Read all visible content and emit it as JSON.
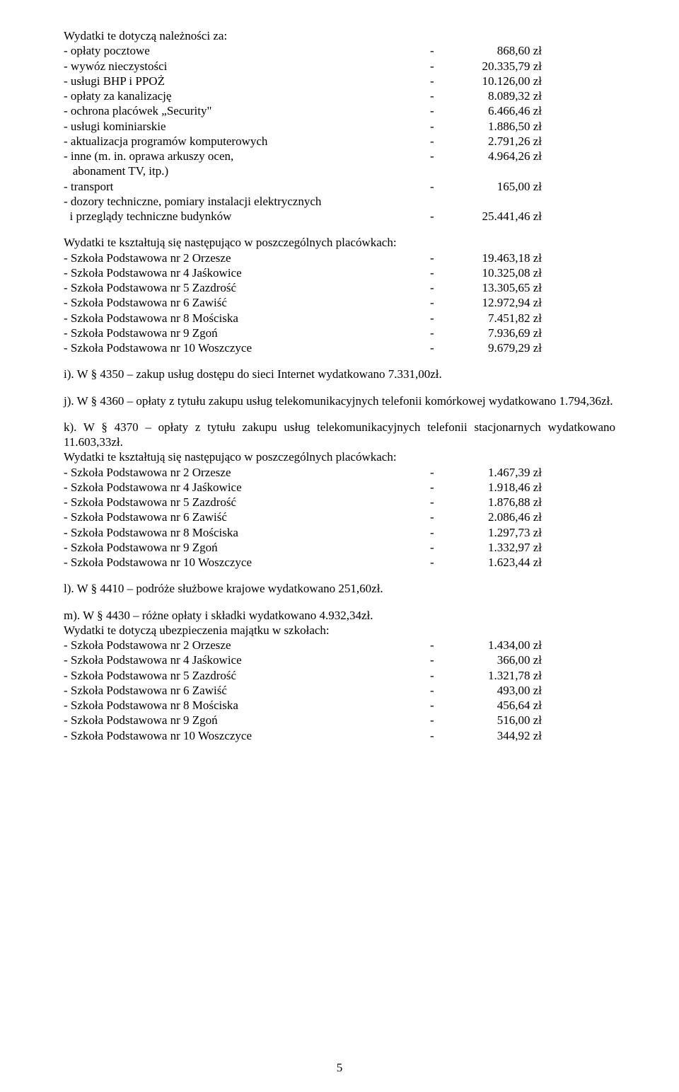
{
  "intro": "Wydatki te dotyczą należności za:",
  "items1": [
    {
      "label": "- opłaty pocztowe",
      "val": "868,60 zł"
    },
    {
      "label": "- wywóz nieczystości",
      "val": "20.335,79 zł"
    },
    {
      "label": "- usługi BHP i PPOŻ",
      "val": "10.126,00 zł"
    },
    {
      "label": "- opłaty za kanalizację",
      "val": "8.089,32 zł"
    },
    {
      "label": "- ochrona placówek „Security\"",
      "val": "6.466,46 zł"
    },
    {
      "label": "- usługi kominiarskie",
      "val": "1.886,50 zł"
    },
    {
      "label": "- aktualizacja programów komputerowych",
      "val": "2.791,26 zł"
    },
    {
      "label": "- inne (m. in. oprawa arkuszy ocen,",
      "val": "4.964,26 zł"
    }
  ],
  "items1_cont": "   abonament TV, itp.)",
  "items1b": [
    {
      "label": "- transport",
      "val": "165,00 zł"
    }
  ],
  "items1c_label1": "- dozory techniczne, pomiary instalacji elektrycznych",
  "items1c": {
    "label": "  i przeglądy techniczne budynków",
    "val": "25.441,46 zł"
  },
  "heading2": "Wydatki te kształtują się następująco w poszczególnych placówkach:",
  "items2": [
    {
      "label": "- Szkoła Podstawowa nr 2 Orzesze",
      "val": "19.463,18 zł"
    },
    {
      "label": "- Szkoła Podstawowa nr 4 Jaśkowice",
      "val": "10.325,08 zł"
    },
    {
      "label": "- Szkoła Podstawowa nr 5 Zazdrość",
      "val": "13.305,65 zł"
    },
    {
      "label": "- Szkoła Podstawowa nr 6 Zawiść",
      "val": "12.972,94 zł"
    },
    {
      "label": "- Szkoła Podstawowa nr 8 Mościska",
      "val": "7.451,82 zł"
    },
    {
      "label": "- Szkoła Podstawowa nr 9 Zgoń",
      "val": "7.936,69 zł"
    },
    {
      "label": "- Szkoła Podstawowa nr 10 Woszczyce",
      "val": "9.679,29 zł"
    }
  ],
  "para_i": "i).   W § 4350 – zakup usług dostępu do sieci Internet wydatkowano 7.331,00zł.",
  "para_j": "j).   W § 4360 – opłaty z tytułu zakupu usług telekomunikacyjnych telefonii komórkowej wydatkowano 1.794,36zł.",
  "para_k": "k).  W § 4370 – opłaty z tytułu zakupu usług telekomunikacyjnych telefonii stacjonarnych wydatkowano 11.603,33zł.",
  "heading3": "Wydatki te kształtują się następująco w poszczególnych placówkach:",
  "items3": [
    {
      "label": "- Szkoła Podstawowa nr 2 Orzesze",
      "val": "1.467,39 zł"
    },
    {
      "label": "- Szkoła Podstawowa nr 4 Jaśkowice",
      "val": "1.918,46 zł"
    },
    {
      "label": "- Szkoła Podstawowa nr 5 Zazdrość",
      "val": "1.876,88 zł"
    },
    {
      "label": "- Szkoła Podstawowa nr 6 Zawiść",
      "val": "2.086,46 zł"
    },
    {
      "label": "- Szkoła Podstawowa nr 8 Mościska",
      "val": "1.297,73 zł"
    },
    {
      "label": "- Szkoła Podstawowa nr 9 Zgoń",
      "val": "1.332,97 zł"
    },
    {
      "label": "- Szkoła Podstawowa nr 10 Woszczyce",
      "val": "1.623,44 zł"
    }
  ],
  "para_l": "l).   W § 4410 – podróże służbowe krajowe wydatkowano 251,60zł.",
  "para_m": "m). W § 4430 – różne opłaty i składki wydatkowano 4.932,34zł.",
  "heading4": "Wydatki te dotyczą ubezpieczenia majątku w szkołach:",
  "items4": [
    {
      "label": "- Szkoła Podstawowa nr 2 Orzesze",
      "val": "1.434,00 zł"
    },
    {
      "label": "- Szkoła Podstawowa nr 4 Jaśkowice",
      "val": "366,00 zł"
    },
    {
      "label": "- Szkoła Podstawowa nr 5 Zazdrość",
      "val": "1.321,78 zł"
    },
    {
      "label": "- Szkoła Podstawowa nr 6 Zawiść",
      "val": "493,00 zł"
    },
    {
      "label": "- Szkoła Podstawowa nr 8 Mościska",
      "val": "456,64 zł"
    },
    {
      "label": "- Szkoła Podstawowa nr 9 Zgoń",
      "val": "516,00 zł"
    },
    {
      "label": "- Szkoła Podstawowa nr 10 Woszczyce",
      "val": "344,92 zł"
    }
  ],
  "pagenum": "5"
}
